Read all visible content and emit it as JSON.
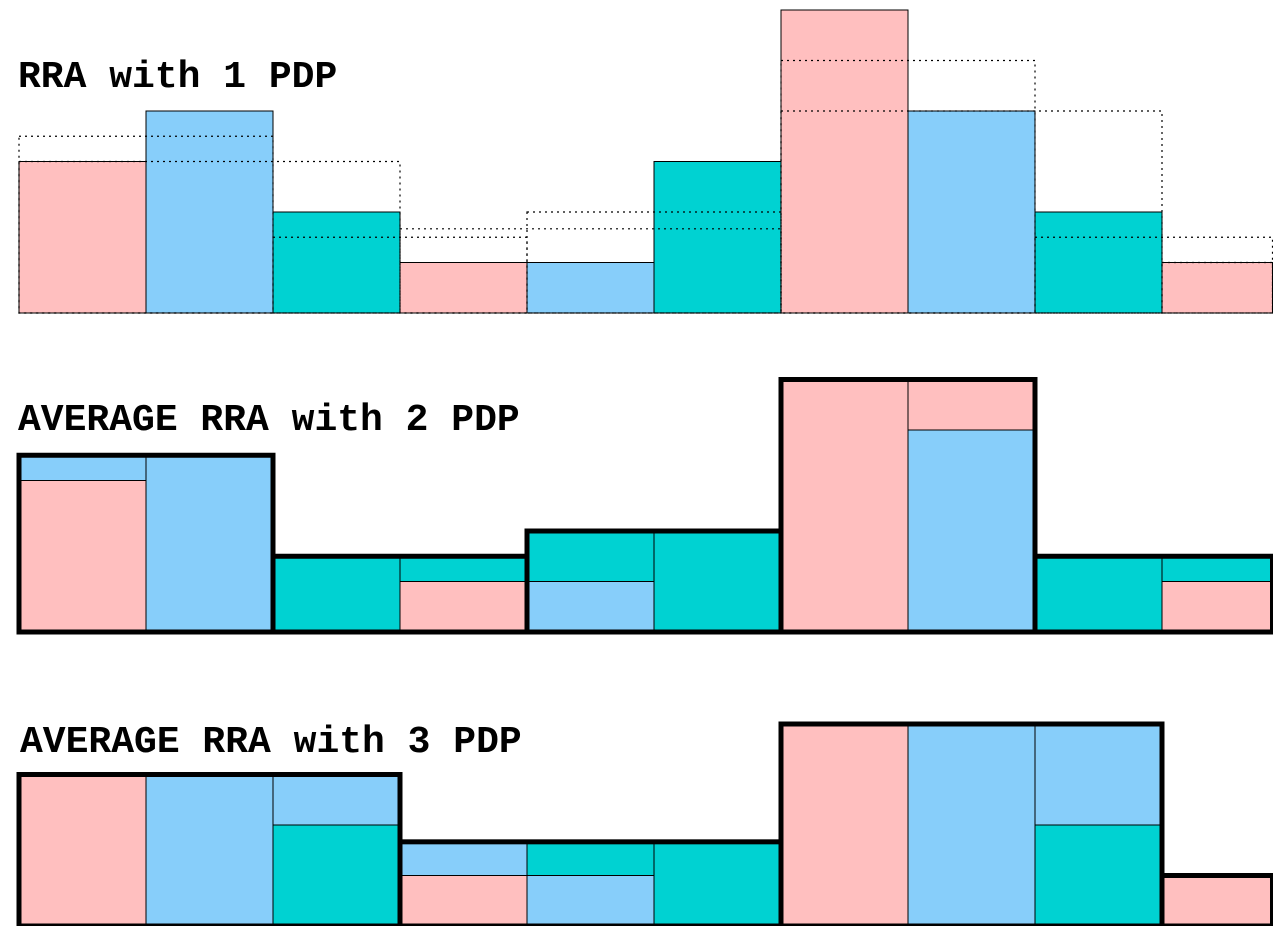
{
  "colors": {
    "pink": "#ffbfbf",
    "blue": "#87cefa",
    "teal": "#00d2d2"
  },
  "sequence": [
    {
      "value": 3,
      "color": "pink"
    },
    {
      "value": 4,
      "color": "blue"
    },
    {
      "value": 2,
      "color": "teal"
    },
    {
      "value": 1,
      "color": "pink"
    },
    {
      "value": 1,
      "color": "blue"
    },
    {
      "value": 3,
      "color": "teal"
    },
    {
      "value": 6,
      "color": "pink"
    },
    {
      "value": 4,
      "color": "blue"
    },
    {
      "value": 2,
      "color": "teal"
    },
    {
      "value": 1,
      "color": "pink"
    }
  ],
  "panels": [
    {
      "title": "RRA with 1 PDP",
      "pdp": 1
    },
    {
      "title": "AVERAGE RRA with 2 PDP",
      "pdp": 2
    },
    {
      "title": "AVERAGE RRA with 3 PDP",
      "pdp": 3
    }
  ]
}
